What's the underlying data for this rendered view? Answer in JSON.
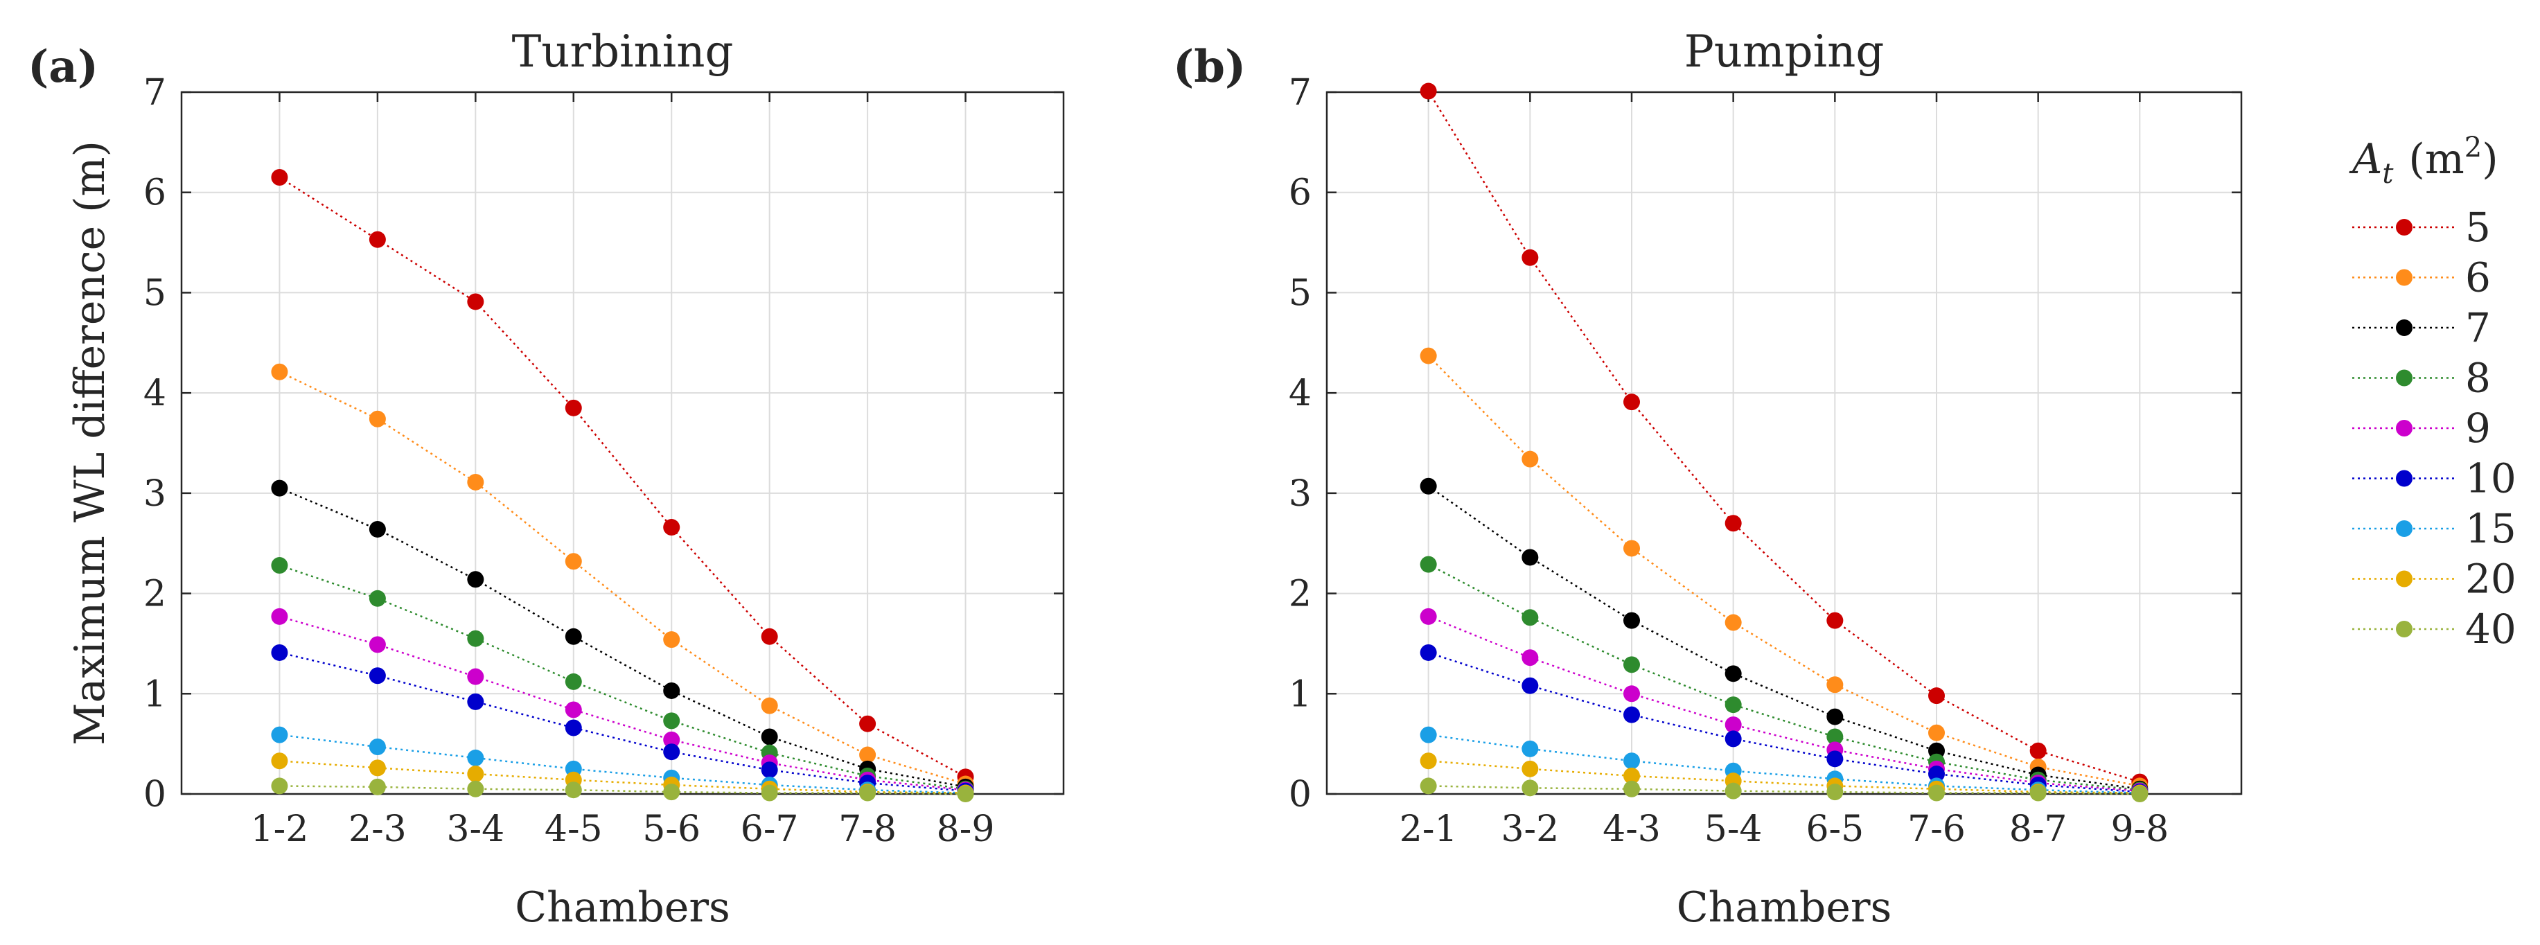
{
  "chart_data": [
    {
      "type": "line",
      "panel_label": "(a)",
      "title": "Turbining",
      "xlabel": "Chambers",
      "ylabel": "Maximum WL difference (m)",
      "ylim": [
        0,
        7
      ],
      "yticks": [
        "0",
        "1",
        "2",
        "3",
        "4",
        "5",
        "6",
        "7"
      ],
      "categories": [
        "1-2",
        "2-3",
        "3-4",
        "4-5",
        "5-6",
        "6-7",
        "7-8",
        "8-9"
      ],
      "grid": true,
      "series": [
        {
          "name": "5",
          "color": "#cc0000",
          "values": [
            6.15,
            5.53,
            4.91,
            3.85,
            2.66,
            1.57,
            0.7,
            0.17
          ]
        },
        {
          "name": "6",
          "color": "#ff8c1a",
          "values": [
            4.21,
            3.74,
            3.11,
            2.32,
            1.54,
            0.88,
            0.39,
            0.1
          ]
        },
        {
          "name": "7",
          "color": "#000000",
          "values": [
            3.05,
            2.64,
            2.14,
            1.57,
            1.03,
            0.57,
            0.25,
            0.07
          ]
        },
        {
          "name": "8",
          "color": "#2e8b2e",
          "values": [
            2.28,
            1.95,
            1.55,
            1.12,
            0.73,
            0.41,
            0.18,
            0.05
          ]
        },
        {
          "name": "9",
          "color": "#cc00cc",
          "values": [
            1.77,
            1.49,
            1.17,
            0.84,
            0.54,
            0.31,
            0.14,
            0.04
          ]
        },
        {
          "name": "10",
          "color": "#0000cc",
          "values": [
            1.41,
            1.18,
            0.92,
            0.66,
            0.42,
            0.24,
            0.11,
            0.03
          ]
        },
        {
          "name": "15",
          "color": "#1a9fe6",
          "values": [
            0.59,
            0.47,
            0.36,
            0.25,
            0.16,
            0.09,
            0.04,
            0.01
          ]
        },
        {
          "name": "20",
          "color": "#e6ac00",
          "values": [
            0.33,
            0.26,
            0.2,
            0.14,
            0.09,
            0.05,
            0.02,
            0.01
          ]
        },
        {
          "name": "40",
          "color": "#99b33d",
          "values": [
            0.08,
            0.07,
            0.05,
            0.04,
            0.02,
            0.01,
            0.01,
            0.0
          ]
        }
      ]
    },
    {
      "type": "line",
      "panel_label": "(b)",
      "title": "Pumping",
      "xlabel": "Chambers",
      "ylabel": "",
      "ylim": [
        0,
        7
      ],
      "yticks": [
        "0",
        "1",
        "2",
        "3",
        "4",
        "5",
        "6",
        "7"
      ],
      "categories": [
        "2-1",
        "3-2",
        "4-3",
        "5-4",
        "6-5",
        "7-6",
        "8-7",
        "9-8"
      ],
      "grid": true,
      "series": [
        {
          "name": "5",
          "color": "#cc0000",
          "values": [
            7.01,
            5.35,
            3.91,
            2.7,
            1.73,
            0.98,
            0.43,
            0.12
          ]
        },
        {
          "name": "6",
          "color": "#ff8c1a",
          "values": [
            4.37,
            3.34,
            2.45,
            1.71,
            1.09,
            0.61,
            0.27,
            0.08
          ]
        },
        {
          "name": "7",
          "color": "#000000",
          "values": [
            3.07,
            2.36,
            1.73,
            1.2,
            0.77,
            0.43,
            0.19,
            0.05
          ]
        },
        {
          "name": "8",
          "color": "#2e8b2e",
          "values": [
            2.29,
            1.76,
            1.29,
            0.89,
            0.57,
            0.32,
            0.14,
            0.04
          ]
        },
        {
          "name": "9",
          "color": "#cc00cc",
          "values": [
            1.77,
            1.36,
            1.0,
            0.69,
            0.44,
            0.25,
            0.11,
            0.03
          ]
        },
        {
          "name": "10",
          "color": "#0000cc",
          "values": [
            1.41,
            1.08,
            0.79,
            0.55,
            0.35,
            0.2,
            0.09,
            0.02
          ]
        },
        {
          "name": "15",
          "color": "#1a9fe6",
          "values": [
            0.59,
            0.45,
            0.33,
            0.23,
            0.15,
            0.08,
            0.04,
            0.01
          ]
        },
        {
          "name": "20",
          "color": "#e6ac00",
          "values": [
            0.33,
            0.25,
            0.18,
            0.13,
            0.08,
            0.05,
            0.02,
            0.01
          ]
        },
        {
          "name": "40",
          "color": "#99b33d",
          "values": [
            0.08,
            0.06,
            0.05,
            0.03,
            0.02,
            0.01,
            0.01,
            0.0
          ]
        }
      ]
    }
  ],
  "legend": {
    "title_symbol": "A",
    "title_subscript": "t",
    "title_units_open": "(m",
    "title_units_power": "2",
    "title_units_close": ")",
    "placement": "right"
  }
}
